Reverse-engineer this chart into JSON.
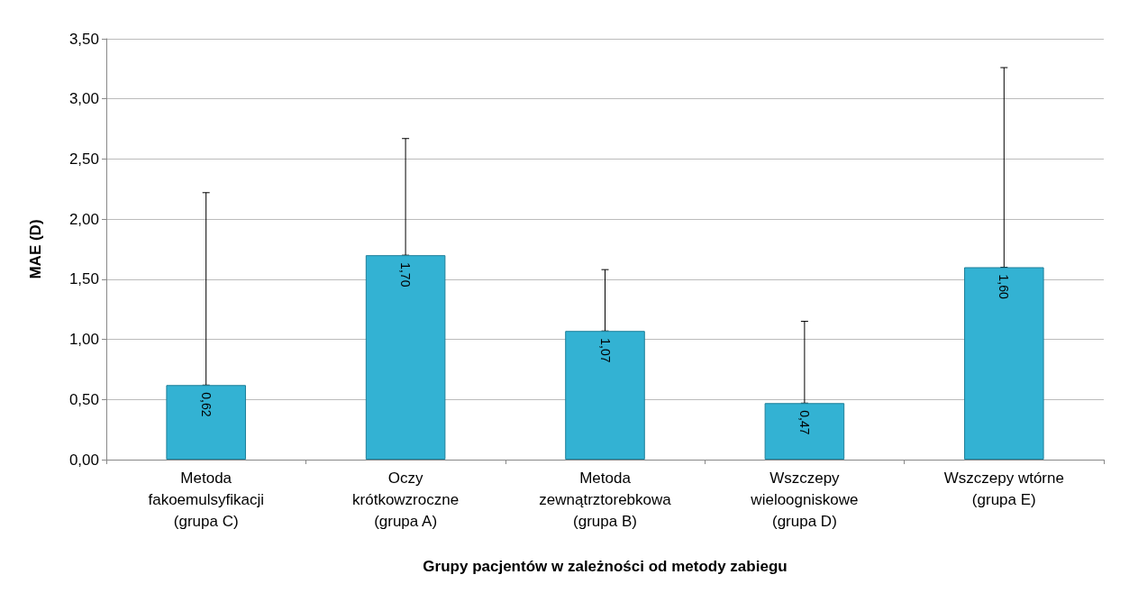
{
  "chart_data": {
    "type": "bar",
    "xlabel": "Grupy pacjentów w zależności od metody zabiegu",
    "ylabel": "MAE (D)",
    "categories": [
      "Metoda\nfakoemulsyfikacji\n(grupa C)",
      "Oczy\nkrótkowzroczne\n(grupa A)",
      "Metoda\nzewnątrztorebkowa\n(grupa B)",
      "Wszczepy\nwieloogniskowe\n(grupa D)",
      "Wszczepy wtórne\n(grupa E)"
    ],
    "values": [
      0.62,
      1.7,
      1.07,
      0.47,
      1.6
    ],
    "value_labels": [
      "0,62",
      "1,70",
      "1,07",
      "0,47",
      "1,60"
    ],
    "errors": [
      [
        0.62,
        2.22
      ],
      [
        1.7,
        2.67
      ],
      [
        1.07,
        1.58
      ],
      [
        0.47,
        1.15
      ],
      [
        1.6,
        3.26
      ]
    ],
    "color": "#33b2d3",
    "ylim": [
      0,
      3.5
    ],
    "yticks": [
      {
        "value": 0,
        "label": "0,00"
      },
      {
        "value": 0.5,
        "label": "0,50"
      },
      {
        "value": 1,
        "label": "1,00"
      },
      {
        "value": 1.5,
        "label": "1,50"
      },
      {
        "value": 2,
        "label": "2,00"
      },
      {
        "value": 2.5,
        "label": "2,50"
      },
      {
        "value": 3,
        "label": "3,00"
      },
      {
        "value": 3.5,
        "label": "3,50"
      }
    ],
    "grid": "y"
  }
}
